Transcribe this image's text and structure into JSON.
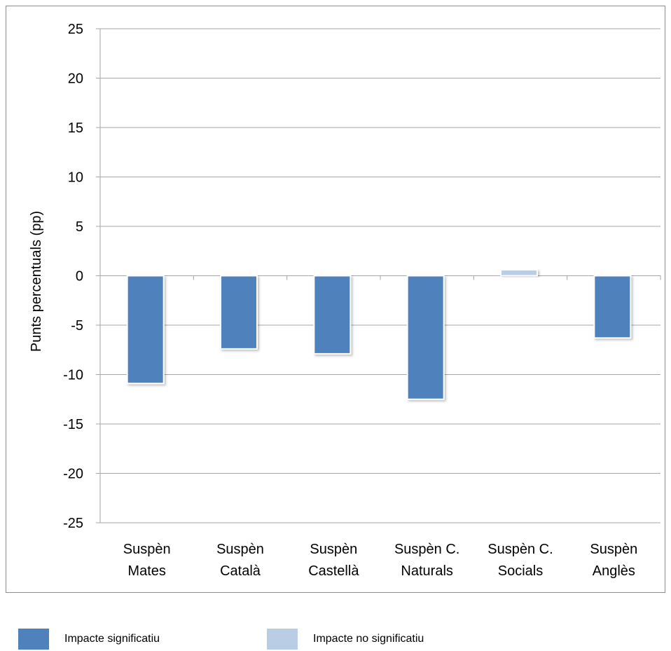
{
  "chart_data": {
    "type": "bar",
    "ylabel": "Punts percentuals (pp)",
    "ylim": [
      -25,
      25
    ],
    "yticks": [
      25,
      20,
      15,
      10,
      5,
      0,
      -5,
      -10,
      -15,
      -20,
      -25
    ],
    "grid": true,
    "categories": [
      [
        "Suspèn",
        "Mates"
      ],
      [
        "Suspèn",
        "Català"
      ],
      [
        "Suspèn",
        "Castellà"
      ],
      [
        "Suspèn C.",
        "Naturals"
      ],
      [
        "Suspèn C.",
        "Socials"
      ],
      [
        "Suspèn",
        "Anglès"
      ]
    ],
    "values": [
      -10.9,
      -7.4,
      -7.9,
      -12.5,
      0.6,
      -6.3
    ],
    "significant": [
      true,
      true,
      true,
      true,
      false,
      true
    ],
    "legend": {
      "placement": "bottom",
      "items": [
        {
          "label": "Impacte significatiu",
          "color": "#4f81bd"
        },
        {
          "label": "Impacte no significatiu",
          "color": "#b9cde5"
        }
      ]
    },
    "colors": {
      "significant": "#4f81bd",
      "not_significant": "#b9cde5",
      "grid": "#a6a6a6"
    }
  }
}
